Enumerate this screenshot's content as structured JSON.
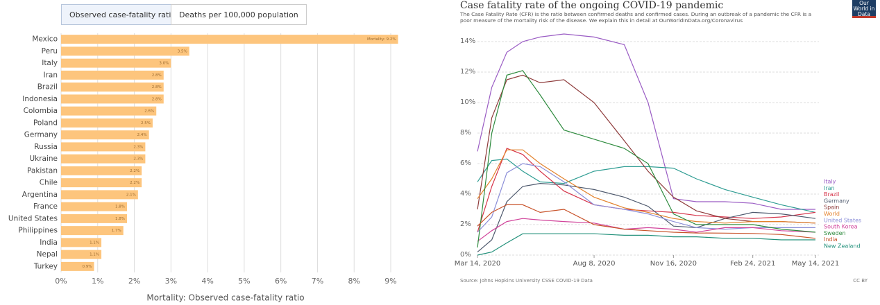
{
  "tabs": [
    "Observed case-fatality ratio",
    "Deaths per 100,000 population"
  ],
  "chart_data": [
    {
      "type": "bar",
      "orientation": "horizontal",
      "color": "#fdc57d",
      "x_label": "Mortality: Observed case-fatality ratio",
      "categories": [
        "Mexico",
        "Peru",
        "Italy",
        "Iran",
        "Brazil",
        "Indonesia",
        "Colombia",
        "Poland",
        "Germany",
        "Russia",
        "Ukraine",
        "Pakistan",
        "Chile",
        "Argentina",
        "France",
        "United States",
        "Philippines",
        "India",
        "Nepal",
        "Turkey"
      ],
      "values": [
        9.2,
        3.5,
        3.0,
        2.8,
        2.8,
        2.8,
        2.6,
        2.5,
        2.4,
        2.3,
        2.3,
        2.2,
        2.2,
        2.1,
        1.8,
        1.8,
        1.7,
        1.1,
        1.1,
        0.9
      ],
      "value_labels": [
        "Mortality: 9.2%",
        "3.5%",
        "3.0%",
        "2.8%",
        "2.8%",
        "2.8%",
        "2.6%",
        "2.5%",
        "2.4%",
        "2.3%",
        "2.3%",
        "2.2%",
        "2.2%",
        "2.1%",
        "1.8%",
        "1.8%",
        "1.7%",
        "1.1%",
        "1.1%",
        "0.9%"
      ],
      "xlim": [
        0,
        9
      ],
      "grid": true,
      "xticks": [
        {
          "value": 0,
          "label": "0%"
        },
        {
          "value": 1,
          "label": "1%"
        },
        {
          "value": 2,
          "label": "2%"
        },
        {
          "value": 3,
          "label": "3%"
        },
        {
          "value": 4,
          "label": "4%"
        },
        {
          "value": 5,
          "label": "5%"
        },
        {
          "value": 6,
          "label": "6%"
        },
        {
          "value": 7,
          "label": "7%"
        },
        {
          "value": 8,
          "label": "8%"
        },
        {
          "value": 9,
          "label": "9%"
        }
      ]
    },
    {
      "type": "line",
      "title": "Case fatality rate of the ongoing COVID-19 pandemic",
      "subtitle": "The Case Fatality Rate (CFR) is the ratio between confirmed deaths and confirmed cases. During an outbreak of a pandemic the CFR is a poor measure of the mortality risk of the disease. We explain this in detail at OurWorldInData.org/Coronavirus",
      "source": "Source: Johns Hopkins University CSSE COVID-19 Data",
      "license": "CC BY",
      "logo": "Our World in Data",
      "x": [
        "2020-03-14",
        "2020-04-01",
        "2020-04-20",
        "2020-05-10",
        "2020-06-01",
        "2020-07-01",
        "2020-08-08",
        "2020-09-15",
        "2020-10-15",
        "2020-11-16",
        "2020-12-15",
        "2021-01-20",
        "2021-02-24",
        "2021-04-01",
        "2021-05-14"
      ],
      "xlim": [
        "2020-03-14",
        "2021-05-14"
      ],
      "xticks": [
        {
          "value": "2020-03-14",
          "label": "Mar 14, 2020"
        },
        {
          "value": "2020-08-08",
          "label": "Aug 8, 2020"
        },
        {
          "value": "2020-11-16",
          "label": "Nov 16, 2020"
        },
        {
          "value": "2021-02-24",
          "label": "Feb 24, 2021"
        },
        {
          "value": "2021-05-14",
          "label": "May 14, 2021"
        }
      ],
      "ylim": [
        0,
        14
      ],
      "grid": true,
      "yticks": [
        {
          "value": 0,
          "label": "0%"
        },
        {
          "value": 2,
          "label": "2%"
        },
        {
          "value": 4,
          "label": "4%"
        },
        {
          "value": 6,
          "label": "6%"
        },
        {
          "value": 8,
          "label": "8%"
        },
        {
          "value": 10,
          "label": "10%"
        },
        {
          "value": 12,
          "label": "12%"
        },
        {
          "value": 14,
          "label": "14%"
        }
      ],
      "series": [
        {
          "name": "Italy",
          "color": "#9a5cc4",
          "values": [
            6.8,
            11,
            13.3,
            14,
            14.3,
            14.5,
            14.3,
            13.8,
            10,
            3.7,
            3.5,
            3.5,
            3.4,
            3.0,
            3.0
          ]
        },
        {
          "name": "Iran",
          "color": "#2f9d93",
          "values": [
            4.8,
            6.2,
            6.3,
            5.5,
            4.8,
            4.7,
            5.5,
            5.8,
            5.8,
            5.7,
            5.0,
            4.3,
            3.8,
            3.3,
            2.8
          ]
        },
        {
          "name": "Brazil",
          "color": "#d6344a",
          "values": [
            1.5,
            4.5,
            7.0,
            6.6,
            5.5,
            4.2,
            3.3,
            3.0,
            2.9,
            2.8,
            2.6,
            2.5,
            2.4,
            2.5,
            2.8
          ]
        },
        {
          "name": "Germany",
          "color": "#4f5a6e",
          "values": [
            0.2,
            1,
            3.5,
            4.5,
            4.7,
            4.6,
            4.3,
            3.8,
            3.2,
            1.9,
            1.8,
            2.4,
            2.8,
            2.7,
            2.4
          ]
        },
        {
          "name": "Spain",
          "color": "#8e3b3b",
          "values": [
            3,
            9,
            11.5,
            11.8,
            11.3,
            11.5,
            10,
            7.5,
            5.5,
            3.8,
            2.9,
            2.4,
            2.2,
            2.2,
            2.1
          ]
        },
        {
          "name": "World",
          "color": "#e3822c",
          "values": [
            3.7,
            5.0,
            6.9,
            6.9,
            6.0,
            5.0,
            3.8,
            3.1,
            2.8,
            2.4,
            2.2,
            2.1,
            2.2,
            2.2,
            2.1
          ]
        },
        {
          "name": "United States",
          "color": "#8c8fd8",
          "values": [
            1.5,
            2.5,
            5.4,
            6.0,
            5.8,
            4.8,
            3.3,
            3.0,
            2.7,
            2.2,
            1.8,
            1.7,
            1.8,
            1.8,
            1.8
          ]
        },
        {
          "name": "South Korea",
          "color": "#d1449b",
          "values": [
            0.9,
            1.6,
            2.2,
            2.4,
            2.3,
            2.2,
            2.1,
            1.7,
            1.8,
            1.7,
            1.5,
            1.8,
            1.8,
            1.6,
            1.5
          ]
        },
        {
          "name": "Sweden",
          "color": "#2e8b3e",
          "values": [
            0.5,
            8,
            11.8,
            12.1,
            10.5,
            8.2,
            7.6,
            7.0,
            6.0,
            2.7,
            2.0,
            2.0,
            2.0,
            1.7,
            1.5
          ]
        },
        {
          "name": "India",
          "color": "#c8532a",
          "values": [
            1.9,
            2.8,
            3.3,
            3.3,
            2.8,
            3.0,
            2.0,
            1.7,
            1.6,
            1.5,
            1.45,
            1.44,
            1.42,
            1.35,
            1.1
          ]
        },
        {
          "name": "New Zealand",
          "color": "#21907a",
          "values": [
            0.0,
            0.2,
            0.8,
            1.4,
            1.4,
            1.4,
            1.4,
            1.3,
            1.3,
            1.2,
            1.2,
            1.1,
            1.1,
            1.0,
            1.0
          ]
        }
      ]
    }
  ]
}
